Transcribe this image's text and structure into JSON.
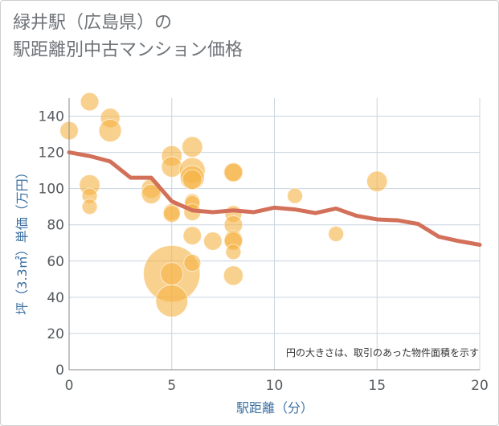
{
  "title": {
    "line1": "緑井駅（広島県）の",
    "line2": "駅距離別中古マンション価格"
  },
  "colors": {
    "bubble": "#f5b342",
    "line": "#d2705a",
    "grid": "#c8d4df",
    "axis_title": "#3b6fa0"
  },
  "chart_data": {
    "type": "scatter",
    "title": "緑井駅（広島県）の駅距離別中古マンション価格",
    "xlabel": "駅距離（分）",
    "ylabel": "坪（3.3㎡）単価（万円）",
    "xlim": [
      0,
      20
    ],
    "ylim": [
      0,
      150
    ],
    "x_ticks": [
      0,
      5,
      10,
      15,
      20
    ],
    "y_ticks": [
      0,
      20,
      40,
      60,
      80,
      100,
      120,
      140
    ],
    "grid": true,
    "note": "円の大きさは、取引のあった物件面積を示す",
    "bubbles": [
      {
        "x": 0,
        "y": 132,
        "s": 2
      },
      {
        "x": 1,
        "y": 148,
        "s": 2
      },
      {
        "x": 1,
        "y": 102,
        "s": 3
      },
      {
        "x": 1,
        "y": 96,
        "s": 1
      },
      {
        "x": 1,
        "y": 90,
        "s": 1
      },
      {
        "x": 2,
        "y": 139,
        "s": 2.5
      },
      {
        "x": 2,
        "y": 132,
        "s": 4
      },
      {
        "x": 4,
        "y": 100,
        "s": 2.5
      },
      {
        "x": 4,
        "y": 97,
        "s": 2.5
      },
      {
        "x": 5,
        "y": 118,
        "s": 3
      },
      {
        "x": 5,
        "y": 112,
        "s": 3
      },
      {
        "x": 5,
        "y": 87,
        "s": 1.5
      },
      {
        "x": 5,
        "y": 86,
        "s": 1.5
      },
      {
        "x": 5,
        "y": 53,
        "s": 45
      },
      {
        "x": 5,
        "y": 53,
        "s": 4
      },
      {
        "x": 5,
        "y": 38,
        "s": 11
      },
      {
        "x": 6,
        "y": 123,
        "s": 3
      },
      {
        "x": 6,
        "y": 110,
        "s": 6
      },
      {
        "x": 6,
        "y": 106,
        "s": 5
      },
      {
        "x": 6,
        "y": 105,
        "s": 2.5
      },
      {
        "x": 6,
        "y": 93,
        "s": 1
      },
      {
        "x": 6,
        "y": 92,
        "s": 1
      },
      {
        "x": 6,
        "y": 87,
        "s": 1.5
      },
      {
        "x": 6,
        "y": 74,
        "s": 2
      },
      {
        "x": 6,
        "y": 59,
        "s": 1.5
      },
      {
        "x": 7,
        "y": 71,
        "s": 2
      },
      {
        "x": 8,
        "y": 109,
        "s": 2.5
      },
      {
        "x": 8,
        "y": 109,
        "s": 2
      },
      {
        "x": 8,
        "y": 86,
        "s": 1.5
      },
      {
        "x": 8,
        "y": 80,
        "s": 2
      },
      {
        "x": 8,
        "y": 72,
        "s": 2
      },
      {
        "x": 8,
        "y": 71,
        "s": 2
      },
      {
        "x": 8,
        "y": 65,
        "s": 1
      },
      {
        "x": 8,
        "y": 52,
        "s": 2.5
      },
      {
        "x": 11,
        "y": 96,
        "s": 1
      },
      {
        "x": 13,
        "y": 75,
        "s": 1
      },
      {
        "x": 15,
        "y": 104,
        "s": 3
      }
    ],
    "series": [
      {
        "x": [
          0,
          1,
          2,
          3,
          4,
          5,
          6,
          7,
          8,
          9,
          10,
          11,
          12,
          13,
          14,
          15,
          16,
          17,
          18,
          19,
          20
        ],
        "values": [
          120,
          118,
          115,
          106,
          106,
          93,
          88,
          87,
          88,
          87,
          89.5,
          88.5,
          86.5,
          89,
          85,
          83,
          82.5,
          80.5,
          73.5,
          71,
          69
        ]
      }
    ]
  }
}
